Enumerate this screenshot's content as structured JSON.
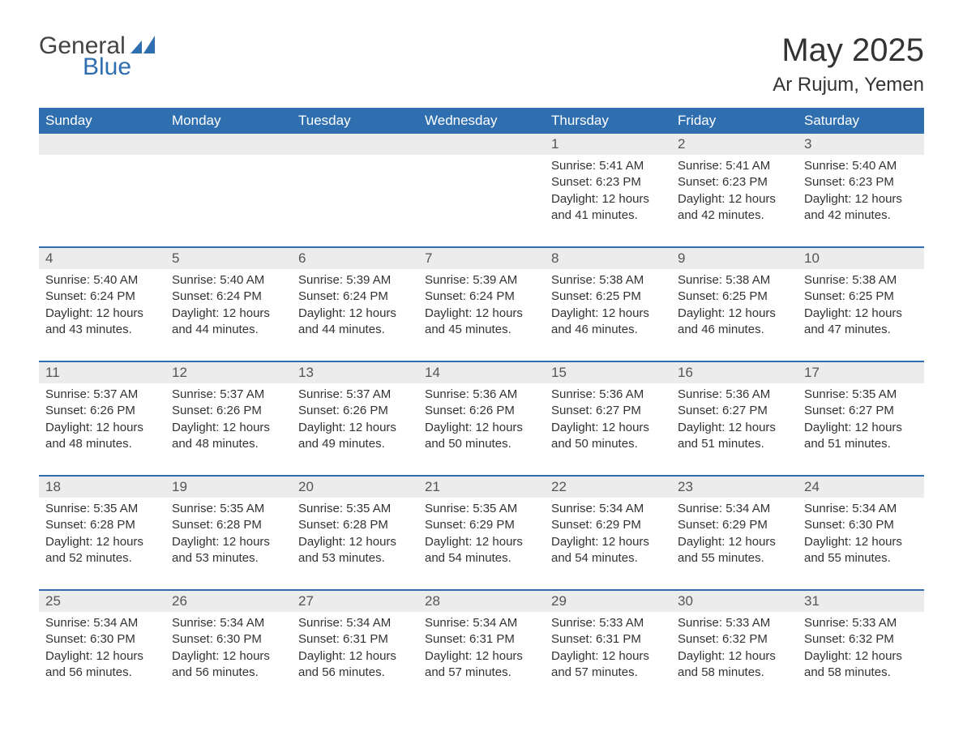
{
  "logo": {
    "word1": "General",
    "word2": "Blue",
    "icon_color": "#2f6fb0"
  },
  "title": "May 2025",
  "subtitle": "Ar Rujum, Yemen",
  "colors": {
    "header_bg": "#2f6fb0",
    "header_text": "#ffffff",
    "daynum_bg": "#ececec",
    "daynum_text": "#555555",
    "body_text": "#333333",
    "rule": "#2f6fb0",
    "page_bg": "#ffffff"
  },
  "day_names": [
    "Sunday",
    "Monday",
    "Tuesday",
    "Wednesday",
    "Thursday",
    "Friday",
    "Saturday"
  ],
  "weeks": [
    [
      null,
      null,
      null,
      null,
      {
        "n": "1",
        "sunrise": "5:41 AM",
        "sunset": "6:23 PM",
        "daylight": "12 hours and 41 minutes."
      },
      {
        "n": "2",
        "sunrise": "5:41 AM",
        "sunset": "6:23 PM",
        "daylight": "12 hours and 42 minutes."
      },
      {
        "n": "3",
        "sunrise": "5:40 AM",
        "sunset": "6:23 PM",
        "daylight": "12 hours and 42 minutes."
      }
    ],
    [
      {
        "n": "4",
        "sunrise": "5:40 AM",
        "sunset": "6:24 PM",
        "daylight": "12 hours and 43 minutes."
      },
      {
        "n": "5",
        "sunrise": "5:40 AM",
        "sunset": "6:24 PM",
        "daylight": "12 hours and 44 minutes."
      },
      {
        "n": "6",
        "sunrise": "5:39 AM",
        "sunset": "6:24 PM",
        "daylight": "12 hours and 44 minutes."
      },
      {
        "n": "7",
        "sunrise": "5:39 AM",
        "sunset": "6:24 PM",
        "daylight": "12 hours and 45 minutes."
      },
      {
        "n": "8",
        "sunrise": "5:38 AM",
        "sunset": "6:25 PM",
        "daylight": "12 hours and 46 minutes."
      },
      {
        "n": "9",
        "sunrise": "5:38 AM",
        "sunset": "6:25 PM",
        "daylight": "12 hours and 46 minutes."
      },
      {
        "n": "10",
        "sunrise": "5:38 AM",
        "sunset": "6:25 PM",
        "daylight": "12 hours and 47 minutes."
      }
    ],
    [
      {
        "n": "11",
        "sunrise": "5:37 AM",
        "sunset": "6:26 PM",
        "daylight": "12 hours and 48 minutes."
      },
      {
        "n": "12",
        "sunrise": "5:37 AM",
        "sunset": "6:26 PM",
        "daylight": "12 hours and 48 minutes."
      },
      {
        "n": "13",
        "sunrise": "5:37 AM",
        "sunset": "6:26 PM",
        "daylight": "12 hours and 49 minutes."
      },
      {
        "n": "14",
        "sunrise": "5:36 AM",
        "sunset": "6:26 PM",
        "daylight": "12 hours and 50 minutes."
      },
      {
        "n": "15",
        "sunrise": "5:36 AM",
        "sunset": "6:27 PM",
        "daylight": "12 hours and 50 minutes."
      },
      {
        "n": "16",
        "sunrise": "5:36 AM",
        "sunset": "6:27 PM",
        "daylight": "12 hours and 51 minutes."
      },
      {
        "n": "17",
        "sunrise": "5:35 AM",
        "sunset": "6:27 PM",
        "daylight": "12 hours and 51 minutes."
      }
    ],
    [
      {
        "n": "18",
        "sunrise": "5:35 AM",
        "sunset": "6:28 PM",
        "daylight": "12 hours and 52 minutes."
      },
      {
        "n": "19",
        "sunrise": "5:35 AM",
        "sunset": "6:28 PM",
        "daylight": "12 hours and 53 minutes."
      },
      {
        "n": "20",
        "sunrise": "5:35 AM",
        "sunset": "6:28 PM",
        "daylight": "12 hours and 53 minutes."
      },
      {
        "n": "21",
        "sunrise": "5:35 AM",
        "sunset": "6:29 PM",
        "daylight": "12 hours and 54 minutes."
      },
      {
        "n": "22",
        "sunrise": "5:34 AM",
        "sunset": "6:29 PM",
        "daylight": "12 hours and 54 minutes."
      },
      {
        "n": "23",
        "sunrise": "5:34 AM",
        "sunset": "6:29 PM",
        "daylight": "12 hours and 55 minutes."
      },
      {
        "n": "24",
        "sunrise": "5:34 AM",
        "sunset": "6:30 PM",
        "daylight": "12 hours and 55 minutes."
      }
    ],
    [
      {
        "n": "25",
        "sunrise": "5:34 AM",
        "sunset": "6:30 PM",
        "daylight": "12 hours and 56 minutes."
      },
      {
        "n": "26",
        "sunrise": "5:34 AM",
        "sunset": "6:30 PM",
        "daylight": "12 hours and 56 minutes."
      },
      {
        "n": "27",
        "sunrise": "5:34 AM",
        "sunset": "6:31 PM",
        "daylight": "12 hours and 56 minutes."
      },
      {
        "n": "28",
        "sunrise": "5:34 AM",
        "sunset": "6:31 PM",
        "daylight": "12 hours and 57 minutes."
      },
      {
        "n": "29",
        "sunrise": "5:33 AM",
        "sunset": "6:31 PM",
        "daylight": "12 hours and 57 minutes."
      },
      {
        "n": "30",
        "sunrise": "5:33 AM",
        "sunset": "6:32 PM",
        "daylight": "12 hours and 58 minutes."
      },
      {
        "n": "31",
        "sunrise": "5:33 AM",
        "sunset": "6:32 PM",
        "daylight": "12 hours and 58 minutes."
      }
    ]
  ],
  "labels": {
    "sunrise": "Sunrise: ",
    "sunset": "Sunset: ",
    "daylight": "Daylight: "
  }
}
